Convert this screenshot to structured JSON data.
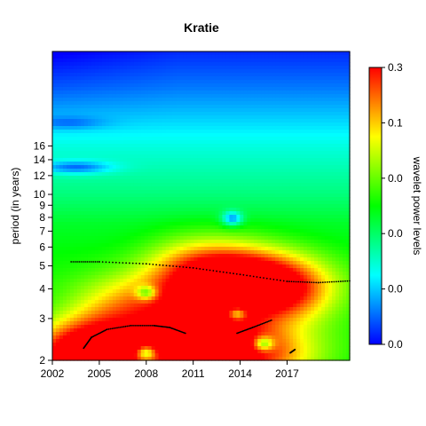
{
  "chart_data": {
    "type": "heatmap",
    "title": "Kratie",
    "ylabel": "period (in years)",
    "colorbar_label": "wavelet power levels",
    "x_ticks": [
      "2002",
      "2005",
      "2008",
      "2011",
      "2014",
      "2017"
    ],
    "x_tick_values": [
      2002,
      2005,
      2008,
      2011,
      2014,
      2017
    ],
    "xlim": [
      2002,
      2021
    ],
    "y_scale": "log2",
    "y_ticks": [
      "2",
      "3",
      "4",
      "5",
      "6",
      "7",
      "8",
      "9",
      "10",
      "12",
      "14",
      "16"
    ],
    "y_tick_values": [
      2,
      3,
      4,
      5,
      6,
      7,
      8,
      9,
      10,
      12,
      14,
      16
    ],
    "ylim": [
      2,
      40
    ],
    "colorbar_ticks": [
      "0.0",
      "0.0",
      "0.0",
      "0.0",
      "0.1",
      "0.3"
    ],
    "colorscale": [
      "#0000ff",
      "#00ffff",
      "#00ff00",
      "#ffff00",
      "#ff0000"
    ],
    "ridge_lines": [
      {
        "name": "",
        "points": [
          [
            2003.2,
            5.2
          ],
          [
            2005.0,
            5.2
          ],
          [
            2008.0,
            5.1
          ],
          [
            2011.0,
            4.9
          ],
          [
            2014.0,
            4.6
          ],
          [
            2017.0,
            4.3
          ],
          [
            2019.0,
            4.25
          ],
          [
            2021.0,
            4.32
          ]
        ]
      },
      {
        "name": "",
        "points": [
          [
            2004.0,
            2.25
          ],
          [
            2004.5,
            2.5
          ],
          [
            2005.5,
            2.7
          ],
          [
            2007.0,
            2.8
          ],
          [
            2008.5,
            2.8
          ],
          [
            2009.5,
            2.75
          ],
          [
            2010.5,
            2.6
          ]
        ]
      },
      {
        "name": "",
        "points": [
          [
            2013.8,
            2.6
          ],
          [
            2014.8,
            2.75
          ],
          [
            2016.0,
            2.95
          ]
        ]
      },
      {
        "name": "",
        "points": [
          [
            2017.2,
            2.15
          ],
          [
            2017.5,
            2.22
          ]
        ]
      }
    ],
    "power_field": {
      "base_by_period": [
        [
          2,
          0.48
        ],
        [
          3,
          0.5
        ],
        [
          4.2,
          0.52
        ],
        [
          5.5,
          0.5
        ],
        [
          7.5,
          0.46
        ],
        [
          10,
          0.38
        ],
        [
          16,
          0.28
        ],
        [
          28,
          0.12
        ],
        [
          40,
          0.04
        ]
      ],
      "blobs": [
        {
          "x": 2014,
          "period": 4.4,
          "amp": 0.5
        },
        {
          "x": 2017,
          "period": 4.0,
          "amp": 0.45
        },
        {
          "x": 2011,
          "period": 4.8,
          "amp": 0.32
        },
        {
          "x": 2003.2,
          "period": 2.05,
          "amp": 0.48
        },
        {
          "x": 2005.5,
          "period": 2.2,
          "amp": 0.42
        },
        {
          "x": 2010,
          "period": 2.3,
          "amp": 0.42
        },
        {
          "x": 2013,
          "period": 2.2,
          "amp": 0.38
        },
        {
          "x": 2016,
          "period": 2.1,
          "amp": 0.3
        },
        {
          "x": 2012.5,
          "period": 3.3,
          "amp": 0.22
        },
        {
          "x": 2009,
          "period": 3.5,
          "amp": 0.2
        },
        {
          "x": 2006,
          "period": 3.3,
          "amp": 0.2
        },
        {
          "x": 2008,
          "period": 3.85,
          "amp": -0.3
        },
        {
          "x": 2013.8,
          "period": 3.15,
          "amp": -0.32
        },
        {
          "x": 2015.5,
          "period": 2.35,
          "amp": -0.35
        },
        {
          "x": 2008,
          "period": 2.15,
          "amp": -0.35
        },
        {
          "x": 2019.5,
          "period": 2.2,
          "amp": 0.05
        },
        {
          "x": 2013.5,
          "period": 7.9,
          "amp": -0.32
        },
        {
          "x": 2003.5,
          "period": 13,
          "amp": -0.22
        },
        {
          "x": 2003,
          "period": 20,
          "amp": -0.1
        }
      ]
    }
  }
}
